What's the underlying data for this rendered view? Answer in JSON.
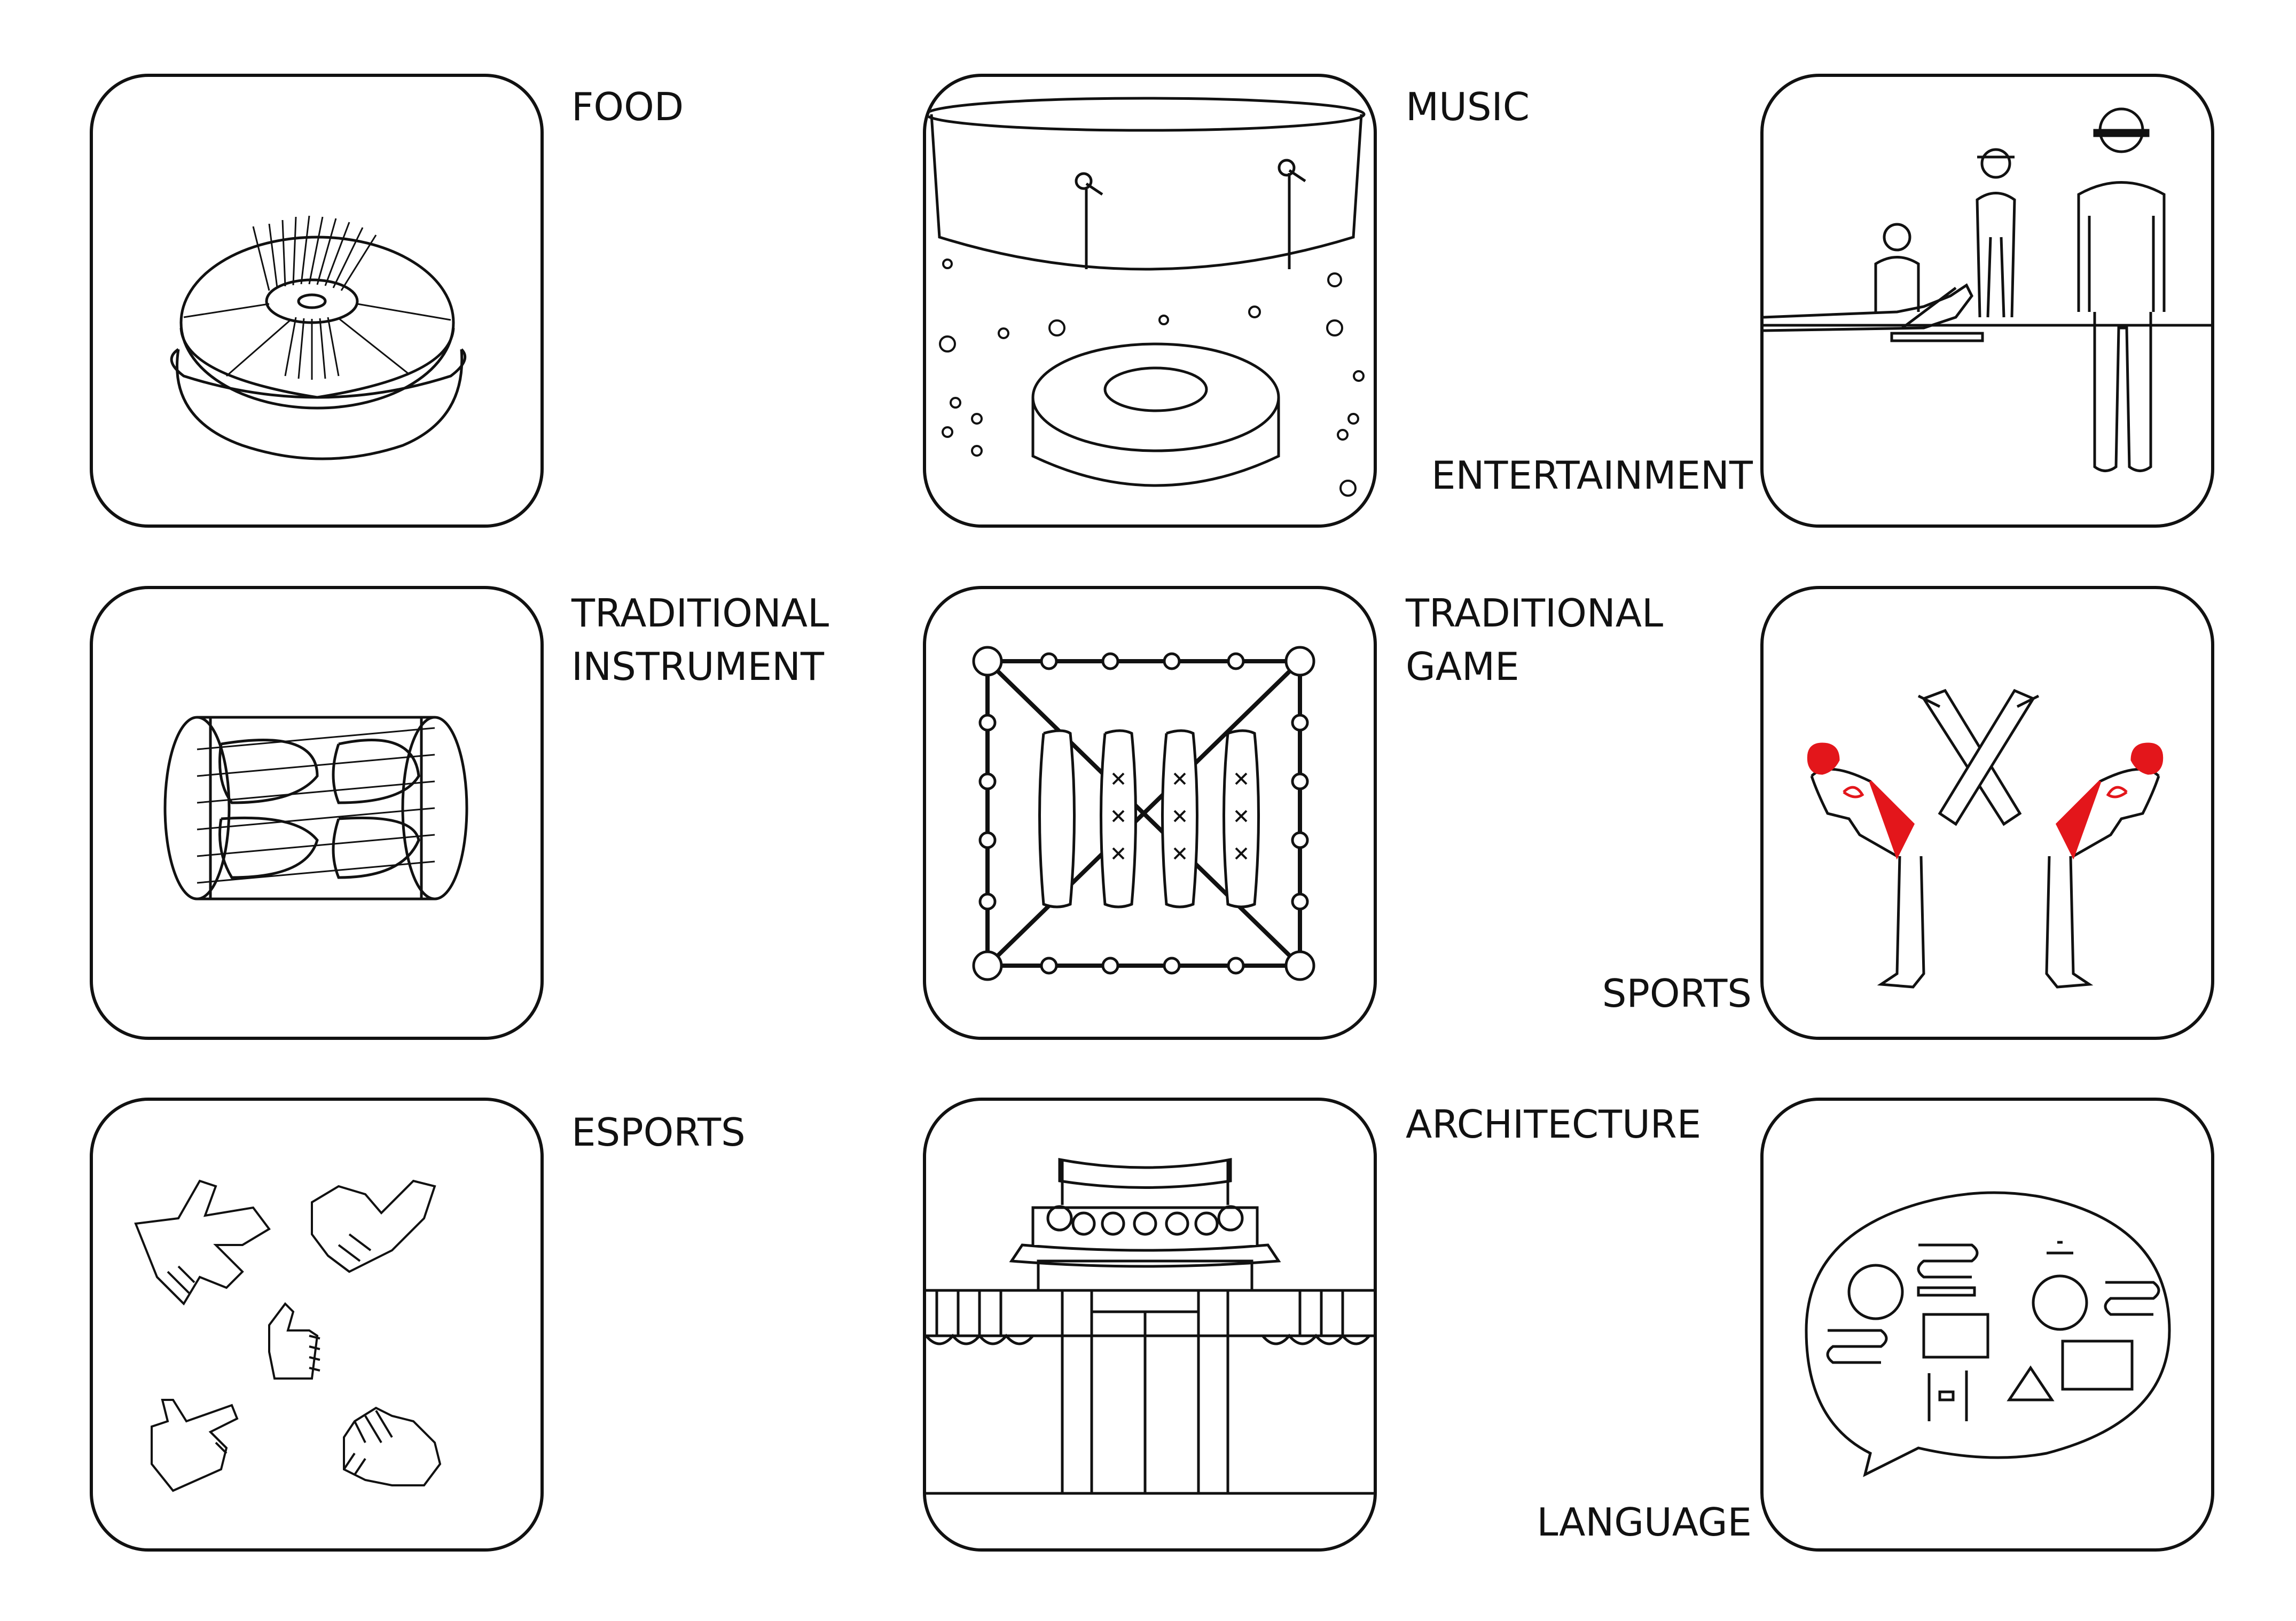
{
  "colors": {
    "stroke": "#111111",
    "accent": "#e3161b",
    "background": "#ffffff"
  },
  "tiles": [
    {
      "id": "food",
      "label": "FOOD",
      "icon": "bowl-icon"
    },
    {
      "id": "music",
      "label": "MUSIC",
      "icon": "stage-icon"
    },
    {
      "id": "entertainment",
      "label": "ENTERTAINMENT",
      "icon": "film-set-icon"
    },
    {
      "id": "traditional-instrument",
      "label": "TRADITIONAL\nINSTRUMENT",
      "icon": "drum-icon"
    },
    {
      "id": "traditional-game",
      "label": "TRADITIONAL\nGAME",
      "icon": "board-game-icon"
    },
    {
      "id": "sports",
      "label": "SPORTS",
      "icon": "taekwondo-kick-icon"
    },
    {
      "id": "esports",
      "label": "ESPORTS",
      "icon": "hand-gestures-icon"
    },
    {
      "id": "architecture",
      "label": "ARCHITECTURE",
      "icon": "gate-icon"
    },
    {
      "id": "language",
      "label": "LANGUAGE",
      "icon": "speech-bubble-icon"
    }
  ]
}
